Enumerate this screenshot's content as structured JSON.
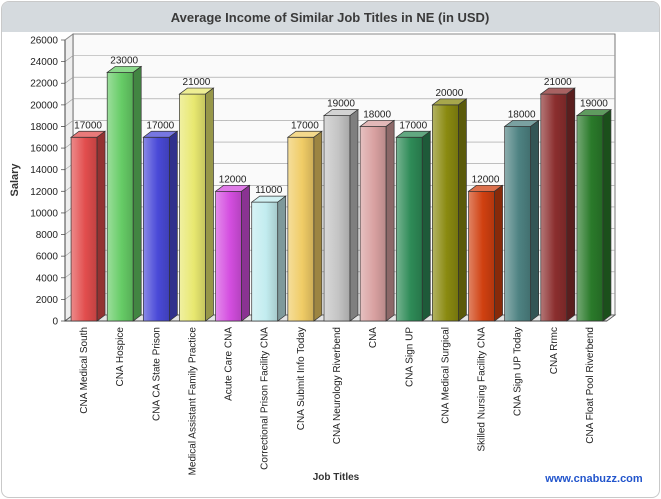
{
  "chart_data": {
    "type": "bar",
    "title": "Average Income of Similar Job Titles in NE (in USD)",
    "xlabel": "Job Titles",
    "ylabel": "Salary",
    "ylim": [
      0,
      26000
    ],
    "yticks": [
      0,
      2000,
      4000,
      6000,
      8000,
      10000,
      12000,
      14000,
      16000,
      18000,
      20000,
      22000,
      24000,
      26000
    ],
    "grid": true,
    "legend": "none",
    "categories": [
      "CNA Medical South",
      "CNA Hospice",
      "CNA CA State Prison",
      "Medical Assistant Family Practice",
      "Acute Care CNA",
      "Correctional Prison Facility CNA",
      "CNA Submit Info Today",
      "CNA Neurology Riverbend",
      "CNA",
      "CNA Sign UP",
      "CNA Medical Surgical",
      "Skilled Nursing Facility CNA",
      "CNA Sign UP Today",
      "CNA Rrmc",
      "CNA Float Pool Riverbend"
    ],
    "values": [
      17000,
      23000,
      17000,
      21000,
      12000,
      11000,
      17000,
      19000,
      18000,
      17000,
      20000,
      12000,
      18000,
      21000,
      19000
    ],
    "value_labels": [
      "17000",
      "23000",
      "17000",
      "21000",
      "12000",
      "11000",
      "17000",
      "19000",
      "18000",
      "17000",
      "20000",
      "12000",
      "18000",
      "21000",
      "19000"
    ],
    "bar_colors": [
      "#e24d4d",
      "#66cc66",
      "#4a4ad8",
      "#e8e870",
      "#d44ee0",
      "#c2ecef",
      "#f0cc66",
      "#c4c4c4",
      "#d8a0a0",
      "#2e8b57",
      "#8a8a10",
      "#d04010",
      "#4e8282",
      "#8b2e2e",
      "#2a7a2a"
    ]
  },
  "watermark": "www.cnabuzz.com"
}
